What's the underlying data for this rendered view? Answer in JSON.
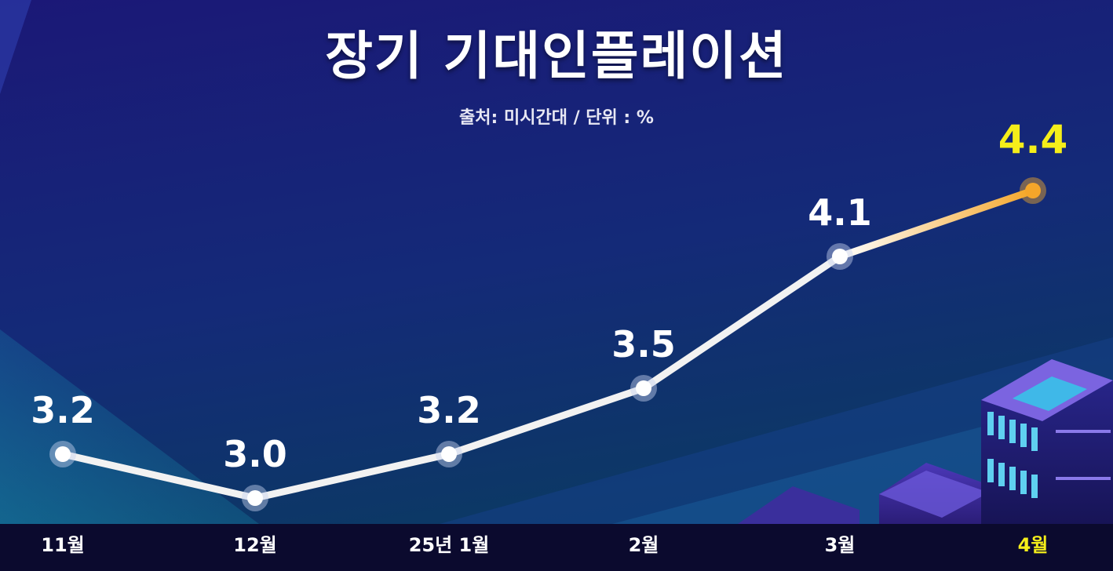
{
  "title": "장기 기대인플레이션",
  "subtitle": "출처: 미시간대 / 단위 : %",
  "colors": {
    "background_top": "#1a1a78",
    "background_bottom": "#0c2f5e",
    "line": "#f2f2f2",
    "highlight": "#f5ee1a",
    "highlight_line": "#f4a62a",
    "axis_bar": "#0b0a2e"
  },
  "chart_data": {
    "type": "line",
    "title": "장기 기대인플레이션",
    "subtitle": "출처: 미시간대 / 단위 : %",
    "categories": [
      "11월",
      "12월",
      "25년 1월",
      "2월",
      "3월",
      "4월"
    ],
    "values": [
      3.2,
      3.0,
      3.2,
      3.5,
      4.1,
      4.4
    ],
    "value_labels": [
      "3.2",
      "3.0",
      "3.2",
      "3.5",
      "4.1",
      "4.4"
    ],
    "highlight_index": 5,
    "ylim": [
      2.8,
      4.8
    ],
    "grid": false,
    "legend": "none"
  }
}
